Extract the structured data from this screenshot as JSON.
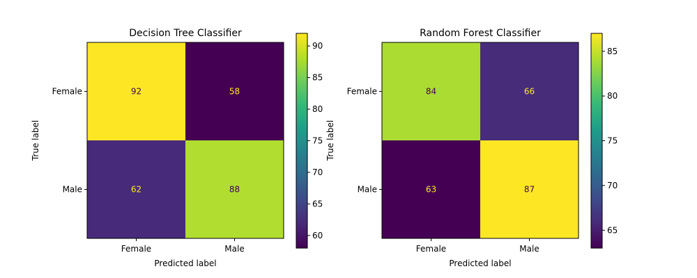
{
  "chart_data": [
    {
      "type": "heatmap",
      "title": "Decision Tree Classifier",
      "xlabel": "Predicted label",
      "ylabel": "True label",
      "x_categories": [
        "Female",
        "Male"
      ],
      "y_categories": [
        "Female",
        "Male"
      ],
      "values": [
        [
          92,
          58
        ],
        [
          62,
          88
        ]
      ],
      "colormap": "viridis",
      "colorbar": {
        "range": [
          58,
          92
        ],
        "ticks": [
          "60",
          "65",
          "70",
          "75",
          "80",
          "85",
          "90"
        ]
      }
    },
    {
      "type": "heatmap",
      "title": "Random Forest Classifier",
      "xlabel": "Predicted label",
      "ylabel": "True label",
      "x_categories": [
        "Female",
        "Male"
      ],
      "y_categories": [
        "Female",
        "Male"
      ],
      "values": [
        [
          84,
          66
        ],
        [
          63,
          87
        ]
      ],
      "colormap": "viridis",
      "colorbar": {
        "range": [
          63,
          87
        ],
        "ticks": [
          "65",
          "70",
          "75",
          "80",
          "85"
        ]
      }
    }
  ],
  "colors": {
    "text_on_dark": "#fde725",
    "text_on_light": "#440154",
    "axis": "#000000"
  }
}
